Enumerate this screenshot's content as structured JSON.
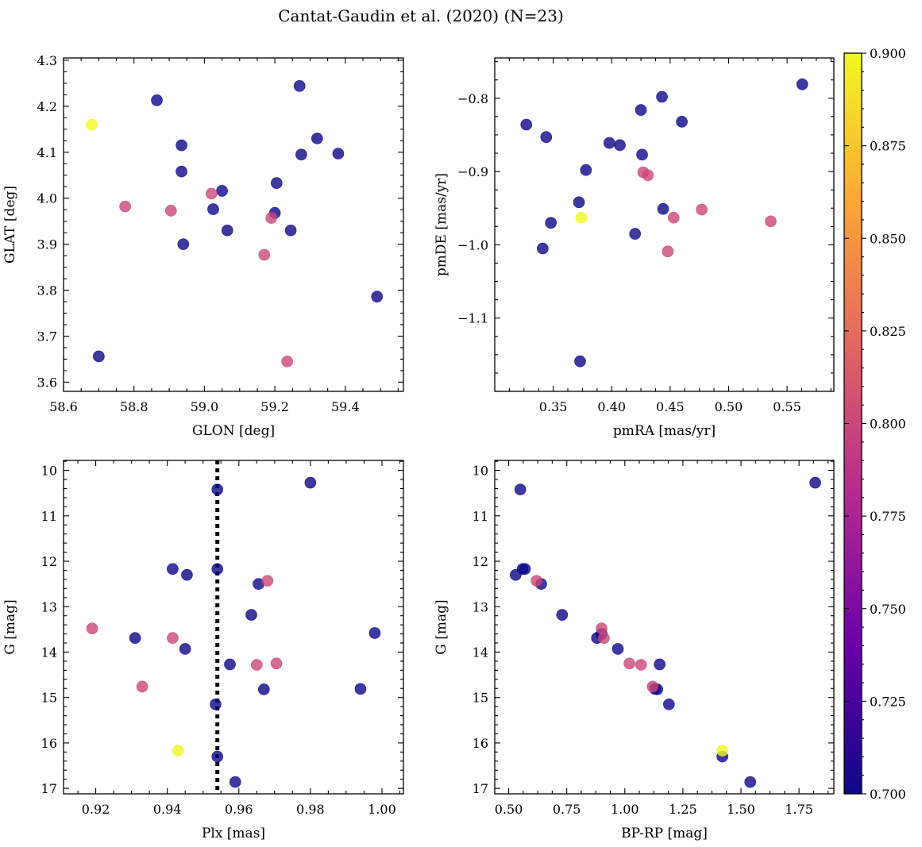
{
  "title": "Cantat-Gaudin et al. (2020) (N=23)",
  "colormap": {
    "name": "plasma",
    "min": 0.7,
    "max": 0.9,
    "ticks": [
      "0.700",
      "0.725",
      "0.750",
      "0.775",
      "0.800",
      "0.825",
      "0.850",
      "0.875",
      "0.900"
    ],
    "stops": [
      "#0d0887",
      "#6a00a8",
      "#b12a90",
      "#e16462",
      "#fca636",
      "#f0f921"
    ]
  },
  "marker_alpha": 0.8,
  "chart_data": [
    {
      "id": "glon-glat",
      "type": "scatter",
      "xlabel": "GLON [deg]",
      "ylabel": "GLAT [deg]",
      "xlim": [
        58.6,
        59.565
      ],
      "ylim": [
        3.58,
        4.305
      ],
      "xticks": [
        "58.6",
        "58.8",
        "59.0",
        "59.2",
        "59.4"
      ],
      "yticks": [
        "3.6",
        "3.7",
        "3.8",
        "3.9",
        "4.0",
        "4.1",
        "4.2",
        "4.3"
      ],
      "x": [
        58.865,
        59.27,
        58.935,
        58.935,
        59.05,
        59.025,
        59.065,
        59.2,
        59.205,
        59.245,
        59.275,
        59.32,
        59.38,
        58.94,
        59.49,
        58.7,
        58.68,
        58.775,
        58.905,
        59.02,
        59.19,
        59.17,
        59.235
      ],
      "y": [
        4.213,
        4.244,
        4.115,
        4.058,
        4.016,
        3.976,
        3.93,
        3.968,
        4.033,
        3.93,
        4.095,
        4.13,
        4.097,
        3.9,
        3.786,
        3.656,
        4.16,
        3.982,
        3.973,
        4.01,
        3.957,
        3.877,
        3.645
      ],
      "c": [
        0.7,
        0.7,
        0.7,
        0.7,
        0.7,
        0.7,
        0.7,
        0.7,
        0.7,
        0.7,
        0.7,
        0.7,
        0.7,
        0.7,
        0.7,
        0.7,
        0.9,
        0.8,
        0.8,
        0.8,
        0.8,
        0.8,
        0.8
      ]
    },
    {
      "id": "pmra-pmde",
      "type": "scatter",
      "xlabel": "pmRA [mas/yr]",
      "ylabel": "pmDE [mas/yr]",
      "xlim": [
        0.3,
        0.59
      ],
      "ylim": [
        -1.2,
        -0.745
      ],
      "xticks": [
        "0.35",
        "0.40",
        "0.45",
        "0.50",
        "0.55"
      ],
      "yticks": [
        "−0.8",
        "−0.9",
        "−1.0",
        "−1.1"
      ],
      "x": [
        0.327,
        0.344,
        0.348,
        0.341,
        0.372,
        0.378,
        0.398,
        0.407,
        0.425,
        0.426,
        0.443,
        0.46,
        0.444,
        0.42,
        0.373,
        0.563,
        0.374,
        0.427,
        0.431,
        0.453,
        0.477,
        0.536,
        0.448
      ],
      "y": [
        -0.836,
        -0.853,
        -0.97,
        -1.005,
        -0.942,
        -0.898,
        -0.861,
        -0.864,
        -0.816,
        -0.877,
        -0.798,
        -0.832,
        -0.951,
        -0.985,
        -1.159,
        -0.781,
        -0.963,
        -0.901,
        -0.905,
        -0.963,
        -0.952,
        -0.968,
        -1.009
      ],
      "c": [
        0.7,
        0.7,
        0.7,
        0.7,
        0.7,
        0.7,
        0.7,
        0.7,
        0.7,
        0.7,
        0.7,
        0.7,
        0.7,
        0.7,
        0.7,
        0.7,
        0.9,
        0.8,
        0.8,
        0.8,
        0.8,
        0.8,
        0.8
      ]
    },
    {
      "id": "plx-g",
      "type": "scatter",
      "xlabel": "Plx [mas]",
      "ylabel": "G [mag]",
      "xlim": [
        0.911,
        1.006
      ],
      "ylim": [
        17.12,
        9.78
      ],
      "inverted_y": true,
      "vline": 0.954,
      "xticks": [
        "0.92",
        "0.94",
        "0.96",
        "0.98",
        "1.00"
      ],
      "yticks": [
        "10",
        "11",
        "12",
        "13",
        "14",
        "15",
        "16",
        "17"
      ],
      "x": [
        0.954,
        0.98,
        0.9415,
        0.9455,
        0.954,
        0.9655,
        0.9635,
        0.931,
        0.945,
        0.9575,
        0.967,
        0.9535,
        0.954,
        0.959,
        0.998,
        0.994,
        0.943,
        0.968,
        0.919,
        0.9415,
        0.933,
        0.965,
        0.9705
      ],
      "y": [
        10.42,
        10.27,
        12.17,
        12.3,
        12.17,
        12.5,
        13.18,
        13.69,
        13.93,
        14.27,
        14.82,
        15.15,
        16.3,
        16.86,
        13.58,
        14.81,
        16.17,
        12.43,
        13.48,
        13.69,
        14.76,
        14.28,
        14.25
      ],
      "c": [
        0.7,
        0.7,
        0.7,
        0.7,
        0.7,
        0.7,
        0.7,
        0.7,
        0.7,
        0.7,
        0.7,
        0.7,
        0.7,
        0.7,
        0.7,
        0.7,
        0.9,
        0.8,
        0.8,
        0.8,
        0.8,
        0.8,
        0.8
      ]
    },
    {
      "id": "bprp-g",
      "type": "scatter",
      "xlabel": "BP-RP [mag]",
      "ylabel": "G [mag]",
      "xlim": [
        0.44,
        1.9
      ],
      "ylim": [
        17.12,
        9.78
      ],
      "inverted_y": true,
      "xticks": [
        "0.50",
        "0.75",
        "1.00",
        "1.25",
        "1.50",
        "1.75"
      ],
      "yticks": [
        "10",
        "11",
        "12",
        "13",
        "14",
        "15",
        "16",
        "17"
      ],
      "x": [
        0.55,
        1.82,
        0.53,
        0.56,
        0.57,
        0.64,
        0.73,
        0.88,
        0.97,
        1.15,
        1.14,
        1.19,
        1.42,
        1.54,
        0.9,
        1.13,
        1.42,
        0.62,
        0.9,
        0.91,
        1.02,
        1.07,
        1.12
      ],
      "y": [
        10.42,
        10.27,
        12.3,
        12.17,
        12.17,
        12.5,
        13.18,
        13.69,
        13.93,
        14.27,
        14.82,
        15.15,
        16.3,
        16.86,
        13.6,
        14.81,
        16.17,
        12.43,
        13.48,
        13.69,
        14.25,
        14.28,
        14.76
      ],
      "c": [
        0.7,
        0.7,
        0.7,
        0.7,
        0.7,
        0.7,
        0.7,
        0.7,
        0.7,
        0.7,
        0.7,
        0.7,
        0.7,
        0.7,
        0.7,
        0.7,
        0.9,
        0.8,
        0.8,
        0.8,
        0.8,
        0.8,
        0.8
      ]
    }
  ]
}
